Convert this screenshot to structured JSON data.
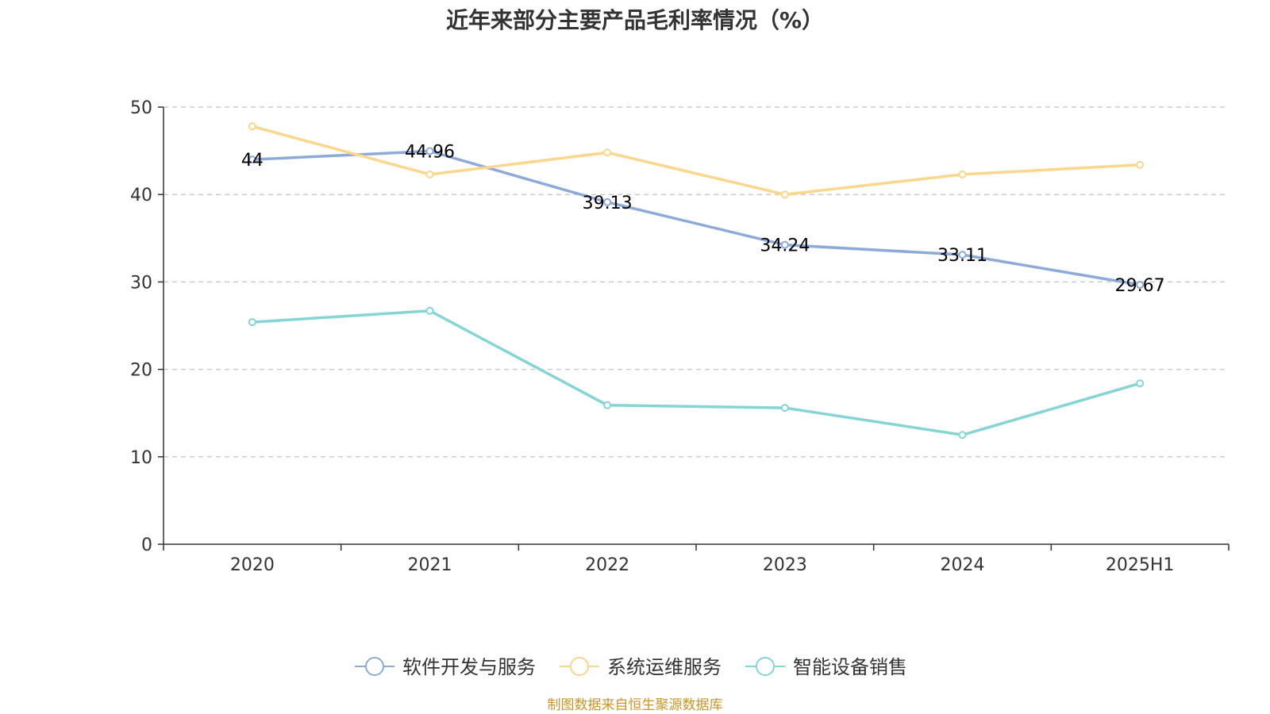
{
  "chart_data": {
    "type": "line",
    "title": "近年来部分主要产品毛利率情况（%）",
    "categories": [
      "2020",
      "2021",
      "2022",
      "2023",
      "2024",
      "2025H1"
    ],
    "ylim": [
      0,
      50
    ],
    "yticks": [
      0,
      10,
      20,
      30,
      40,
      50
    ],
    "grid": true,
    "legend_position": "bottom",
    "series": [
      {
        "name": "软件开发与服务",
        "color": "#8eaad8",
        "values": [
          44,
          44.96,
          39.13,
          34.24,
          33.11,
          29.67
        ],
        "labels": [
          "44",
          "44.96",
          "39.13",
          "34.24",
          "33.11",
          "29.67"
        ]
      },
      {
        "name": "系统运维服务",
        "color": "#fbd78e",
        "values": [
          47.8,
          42.3,
          44.8,
          40.0,
          42.3,
          43.4
        ]
      },
      {
        "name": "智能设备销售",
        "color": "#86d4d4",
        "values": [
          25.4,
          26.7,
          15.9,
          15.6,
          12.5,
          18.4
        ]
      }
    ]
  },
  "source": "制图数据来自恒生聚源数据库"
}
